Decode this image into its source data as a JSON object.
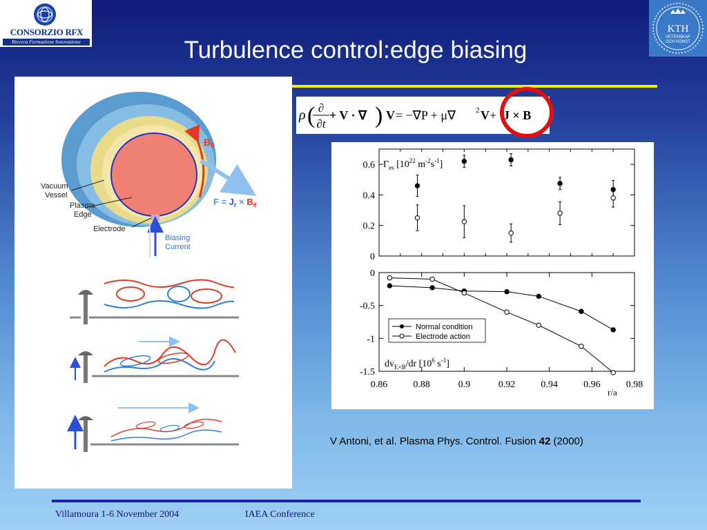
{
  "logo_left": {
    "name": "CONSORZIO RFX",
    "tagline": "Ricerca Formazione Innovazione",
    "icon": "rfx-logo-icon"
  },
  "logo_right": {
    "lines": [
      "KTH",
      "VETENSKAP",
      "OCH KONST"
    ],
    "icon": "kth-crown-icon"
  },
  "slide_title": "Turbulence control:edge biasing",
  "diagram": {
    "labels": {
      "vacuum_vessel": [
        "Vacuum",
        "Vessel"
      ],
      "plasma_edge": [
        "Plasma",
        "Edge"
      ],
      "electrode": "Electrode",
      "biasing_current": [
        "Biasing",
        "Current"
      ],
      "b_theta": "B",
      "b_theta_sub": "θ",
      "force_lhs": "F = ",
      "force_j": "J",
      "force_j_sub": "r",
      "force_times": " × ",
      "force_b": "B",
      "force_b_sub": "θ"
    },
    "colors": {
      "plasma": "#f07f74",
      "vessel": "#6aa8d8",
      "arrow_red": "#e23a22",
      "arrow_blue": "#2c4fd8"
    }
  },
  "equation": {
    "rho": "ρ",
    "d_num": "∂",
    "d_den": "∂t",
    "plus_v_grad": " + V · ∇",
    "v": "V",
    "rhs": " = −∇P + μ∇",
    "sq": "2",
    "v2": "V",
    "plus": " + ",
    "jxb": "J × B"
  },
  "chart_data": [
    {
      "type": "scatter",
      "ylabel": "Γes [10^22 m^-2 s^-1]",
      "ylabel_parts": {
        "gamma": "Γ",
        "sub": "es",
        "open": " [10",
        "exp1": "22",
        "unit1": " m",
        "exp2": "-2",
        "unit2": "s",
        "exp3": "-1",
        "close": "]"
      },
      "ylim": [
        0,
        0.7
      ],
      "yticks": [
        "0",
        "0.2",
        "0.4",
        "0.6"
      ],
      "xlim": [
        0.86,
        0.98
      ],
      "series": [
        {
          "name": "Normal condition",
          "marker": "filled",
          "x": [
            0.878,
            0.9,
            0.922,
            0.945,
            0.97
          ],
          "y": [
            0.46,
            0.62,
            0.63,
            0.475,
            0.435
          ],
          "err": [
            0.07,
            0.04,
            0.04,
            0.04,
            0.06
          ]
        },
        {
          "name": "Electrode action",
          "marker": "open",
          "x": [
            0.878,
            0.9,
            0.922,
            0.945,
            0.97
          ],
          "y": [
            0.25,
            0.225,
            0.15,
            0.28,
            0.38
          ],
          "err": [
            0.085,
            0.105,
            0.06,
            0.075,
            0.06
          ]
        }
      ]
    },
    {
      "type": "line",
      "ylabel": "dvExB/dr [10^6 s^-1]",
      "ylabel_parts": {
        "main": "dv",
        "sub": "E×B",
        "open": "/dr [10",
        "exp": "6",
        "unit": " s",
        "exp2": "-1",
        "close": "]"
      },
      "xlabel": "r/a",
      "xlim": [
        0.86,
        0.98
      ],
      "ylim": [
        -1.5,
        0
      ],
      "xticks": [
        "0.86",
        "0.88",
        "0.9",
        "0.92",
        "0.94",
        "0.96",
        "0.98"
      ],
      "yticks": [
        "0",
        "-0.5",
        "-1",
        "-1.5"
      ],
      "legend_placement": "center",
      "series": [
        {
          "name": "Normal condition",
          "marker": "filled",
          "x": [
            0.865,
            0.885,
            0.9,
            0.92,
            0.935,
            0.955,
            0.97
          ],
          "y": [
            -0.2,
            -0.23,
            -0.28,
            -0.29,
            -0.36,
            -0.59,
            -0.87
          ]
        },
        {
          "name": "Electrode action",
          "marker": "open",
          "x": [
            0.865,
            0.885,
            0.9,
            0.92,
            0.935,
            0.955,
            0.97
          ],
          "y": [
            -0.08,
            -0.1,
            -0.31,
            -0.6,
            -0.8,
            -1.12,
            -1.52
          ]
        }
      ]
    }
  ],
  "citation": {
    "text": "V Antoni, et al.  Plasma Phys. Control. Fusion ",
    "volume": "42",
    "year": " (2000)"
  },
  "footer": {
    "left": "Villamoura 1-6 November 2004",
    "right": "IAEA Conference"
  }
}
